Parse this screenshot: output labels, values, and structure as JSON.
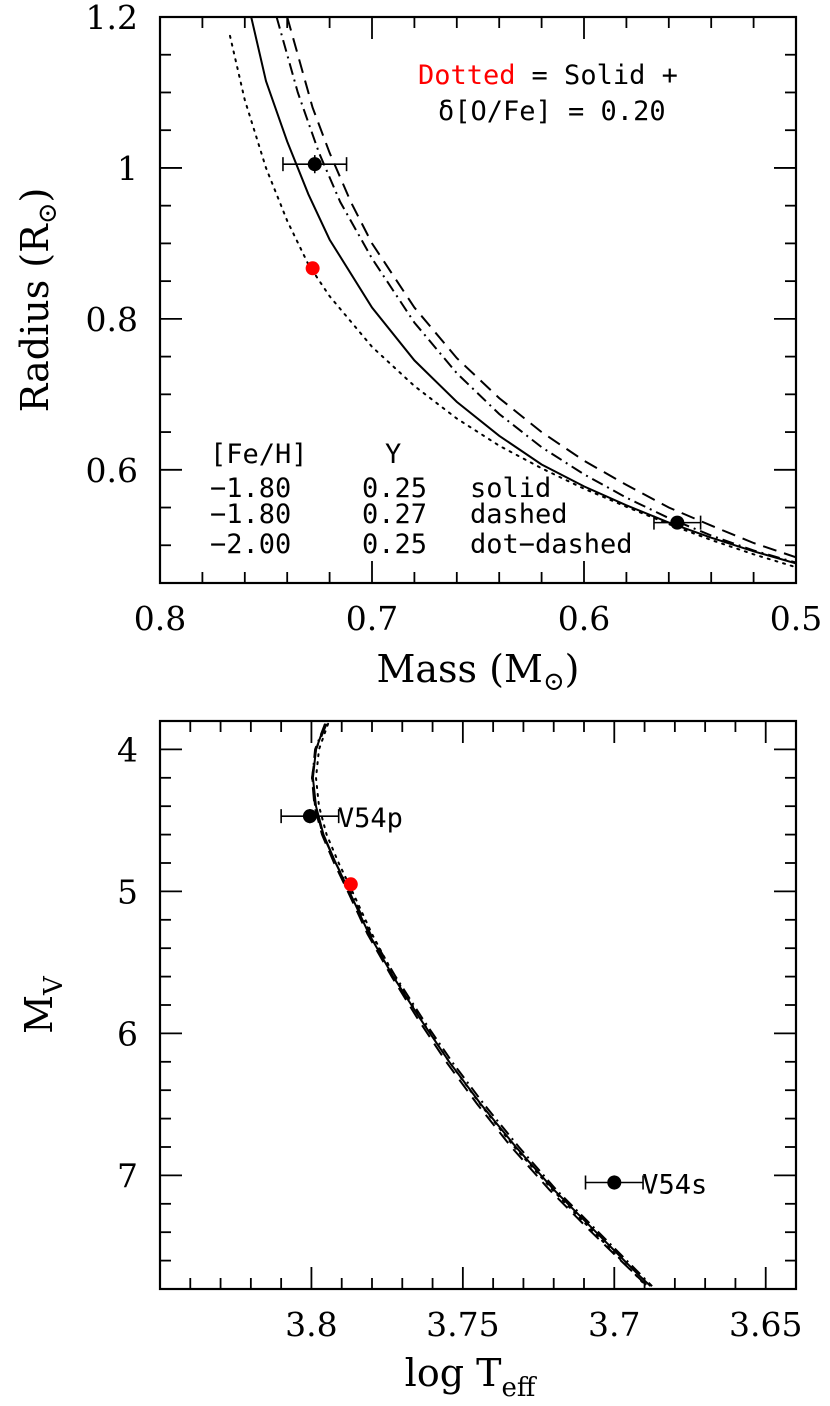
{
  "chart_data": [
    {
      "type": "line",
      "panel": "top",
      "xlabel": "Mass (M",
      "xlabel_sub": "⊙",
      "xlabel_close": ")",
      "ylabel": "Radius (R",
      "ylabel_sub": "⊙",
      "ylabel_close": ")",
      "xlim": [
        0.8,
        0.5
      ],
      "ylim": [
        0.45,
        1.2
      ],
      "x_ticks": [
        0.8,
        0.7,
        0.6,
        0.5
      ],
      "x_tick_labels": [
        "0.8",
        "0.7",
        "0.6",
        "0.5"
      ],
      "y_ticks": [
        0.6,
        0.8,
        1.0,
        1.2
      ],
      "y_tick_labels": [
        "0.6",
        "0.8",
        "1",
        "1.2"
      ],
      "annotation": {
        "line1_red": "Dotted",
        "line1_rest": "= Solid +",
        "line2": "δ[O/Fe] = 0.20",
        "red_color": "#ff0000"
      },
      "legend": {
        "header": [
          "[Fe/H]",
          "Y"
        ],
        "rows": [
          [
            "−1.80",
            "0.25",
            "solid"
          ],
          [
            "−1.80",
            "0.27",
            "dashed"
          ],
          [
            "−2.00",
            "0.25",
            "dot−dashed"
          ]
        ]
      },
      "series": [
        {
          "style": "solid",
          "color": "#000000",
          "points": [
            [
              0.757,
              1.2
            ],
            [
              0.75,
              1.115
            ],
            [
              0.74,
              1.035
            ],
            [
              0.73,
              0.965
            ],
            [
              0.72,
              0.905
            ],
            [
              0.7,
              0.815
            ],
            [
              0.68,
              0.745
            ],
            [
              0.66,
              0.69
            ],
            [
              0.64,
              0.645
            ],
            [
              0.62,
              0.607
            ],
            [
              0.6,
              0.578
            ],
            [
              0.58,
              0.553
            ],
            [
              0.56,
              0.53
            ],
            [
              0.54,
              0.51
            ],
            [
              0.52,
              0.492
            ],
            [
              0.5,
              0.476
            ]
          ]
        },
        {
          "style": "dashed",
          "color": "#000000",
          "points": [
            [
              0.74,
              1.2
            ],
            [
              0.735,
              1.15
            ],
            [
              0.728,
              1.08
            ],
            [
              0.72,
              1.02
            ],
            [
              0.71,
              0.955
            ],
            [
              0.7,
              0.9
            ],
            [
              0.68,
              0.815
            ],
            [
              0.66,
              0.748
            ],
            [
              0.64,
              0.695
            ],
            [
              0.62,
              0.65
            ],
            [
              0.6,
              0.612
            ],
            [
              0.58,
              0.58
            ],
            [
              0.56,
              0.55
            ],
            [
              0.54,
              0.526
            ],
            [
              0.52,
              0.503
            ],
            [
              0.5,
              0.484
            ]
          ]
        },
        {
          "style": "dot-dashed",
          "color": "#000000",
          "points": [
            [
              0.745,
              1.2
            ],
            [
              0.74,
              1.15
            ],
            [
              0.735,
              1.1
            ],
            [
              0.725,
              1.02
            ],
            [
              0.715,
              0.955
            ],
            [
              0.7,
              0.88
            ],
            [
              0.68,
              0.795
            ],
            [
              0.66,
              0.728
            ],
            [
              0.64,
              0.674
            ],
            [
              0.62,
              0.63
            ],
            [
              0.6,
              0.594
            ],
            [
              0.58,
              0.563
            ],
            [
              0.56,
              0.536
            ],
            [
              0.54,
              0.513
            ],
            [
              0.52,
              0.493
            ],
            [
              0.5,
              0.477
            ]
          ]
        },
        {
          "style": "dotted",
          "color": "#ff0000",
          "points": [
            [
              0.767,
              1.175
            ],
            [
              0.76,
              1.09
            ],
            [
              0.75,
              1.0
            ],
            [
              0.74,
              0.93
            ],
            [
              0.73,
              0.872
            ],
            [
              0.72,
              0.83
            ],
            [
              0.7,
              0.763
            ],
            [
              0.68,
              0.711
            ],
            [
              0.66,
              0.668
            ],
            [
              0.64,
              0.632
            ],
            [
              0.62,
              0.602
            ],
            [
              0.6,
              0.575
            ],
            [
              0.58,
              0.551
            ],
            [
              0.56,
              0.528
            ],
            [
              0.54,
              0.507
            ],
            [
              0.52,
              0.488
            ],
            [
              0.5,
              0.471
            ]
          ]
        }
      ],
      "points": [
        {
          "x": 0.727,
          "y": 1.005,
          "xerr": 0.015,
          "yerr": 0.012,
          "color": "#000000"
        },
        {
          "x": 0.556,
          "y": 0.53,
          "xerr": 0.011,
          "yerr": 0.006,
          "color": "#000000"
        },
        {
          "x": 0.728,
          "y": 0.867,
          "xerr": 0,
          "yerr": 0,
          "color": "#ff0000"
        }
      ]
    },
    {
      "type": "line",
      "panel": "bottom",
      "xlabel": "log T",
      "xlabel_sub": "eff",
      "ylabel": "M",
      "ylabel_sub": "V",
      "xlim": [
        3.85,
        3.64
      ],
      "ylim": [
        7.8,
        3.8
      ],
      "x_ticks": [
        3.8,
        3.75,
        3.7,
        3.65
      ],
      "x_tick_labels": [
        "3.8",
        "3.75",
        "3.7",
        "3.65"
      ],
      "y_ticks": [
        4,
        5,
        6,
        7
      ],
      "y_tick_labels": [
        "4",
        "5",
        "6",
        "7"
      ],
      "series": [
        {
          "style": "solid",
          "color": "#000000",
          "points": [
            [
              3.7955,
              3.82
            ],
            [
              3.7985,
              4.0
            ],
            [
              3.7995,
              4.2
            ],
            [
              3.7985,
              4.4
            ],
            [
              3.796,
              4.6
            ],
            [
              3.792,
              4.8
            ],
            [
              3.7875,
              5.0
            ],
            [
              3.781,
              5.3
            ],
            [
              3.773,
              5.6
            ],
            [
              3.764,
              5.9
            ],
            [
              3.7545,
              6.2
            ],
            [
              3.744,
              6.5
            ],
            [
              3.7325,
              6.8
            ],
            [
              3.72,
              7.1
            ],
            [
              3.706,
              7.4
            ],
            [
              3.692,
              7.7
            ],
            [
              3.688,
              7.78
            ]
          ]
        },
        {
          "style": "dashed",
          "color": "#000000",
          "points": [
            [
              3.795,
              3.82
            ],
            [
              3.7985,
              4.0
            ],
            [
              3.7998,
              4.2
            ],
            [
              3.799,
              4.4
            ],
            [
              3.7965,
              4.6
            ],
            [
              3.7925,
              4.8
            ],
            [
              3.788,
              5.0
            ],
            [
              3.7815,
              5.3
            ],
            [
              3.7735,
              5.6
            ],
            [
              3.7648,
              5.9
            ],
            [
              3.7555,
              6.2
            ],
            [
              3.7452,
              6.5
            ],
            [
              3.734,
              6.8
            ],
            [
              3.7215,
              7.1
            ],
            [
              3.7075,
              7.4
            ],
            [
              3.693,
              7.7
            ],
            [
              3.689,
              7.78
            ]
          ]
        },
        {
          "style": "dot-dashed",
          "color": "#000000",
          "points": [
            [
              3.7955,
              3.82
            ],
            [
              3.7988,
              4.0
            ],
            [
              3.7997,
              4.2
            ],
            [
              3.7988,
              4.4
            ],
            [
              3.7962,
              4.6
            ],
            [
              3.792,
              4.8
            ],
            [
              3.7872,
              5.0
            ],
            [
              3.7805,
              5.3
            ],
            [
              3.7722,
              5.6
            ],
            [
              3.7632,
              5.9
            ],
            [
              3.7536,
              6.2
            ],
            [
              3.743,
              6.5
            ],
            [
              3.7315,
              6.8
            ],
            [
              3.7192,
              7.1
            ],
            [
              3.7052,
              7.4
            ],
            [
              3.6912,
              7.7
            ],
            [
              3.6875,
              7.78
            ]
          ]
        },
        {
          "style": "dotted",
          "color": "#ff0000",
          "points": [
            [
              3.7945,
              3.82
            ],
            [
              3.7975,
              4.0
            ],
            [
              3.7985,
              4.2
            ],
            [
              3.7975,
              4.4
            ],
            [
              3.795,
              4.6
            ],
            [
              3.791,
              4.8
            ],
            [
              3.7865,
              5.0
            ],
            [
              3.78,
              5.3
            ],
            [
              3.7725,
              5.6
            ],
            [
              3.7638,
              5.9
            ],
            [
              3.7545,
              6.2
            ],
            [
              3.7442,
              6.5
            ],
            [
              3.733,
              6.8
            ],
            [
              3.7205,
              7.1
            ],
            [
              3.7068,
              7.4
            ],
            [
              3.693,
              7.7
            ],
            [
              3.6895,
              7.78
            ]
          ]
        }
      ],
      "points": [
        {
          "x": 3.8005,
          "y": 4.47,
          "xerr": 0.0095,
          "yerr": 0.05,
          "color": "#000000",
          "label": "V54p"
        },
        {
          "x": 3.7,
          "y": 7.05,
          "xerr": 0.0095,
          "yerr": 0.05,
          "color": "#000000",
          "label": "V54s"
        },
        {
          "x": 3.787,
          "y": 4.95,
          "xerr": 0,
          "yerr": 0,
          "color": "#ff0000"
        }
      ]
    }
  ]
}
